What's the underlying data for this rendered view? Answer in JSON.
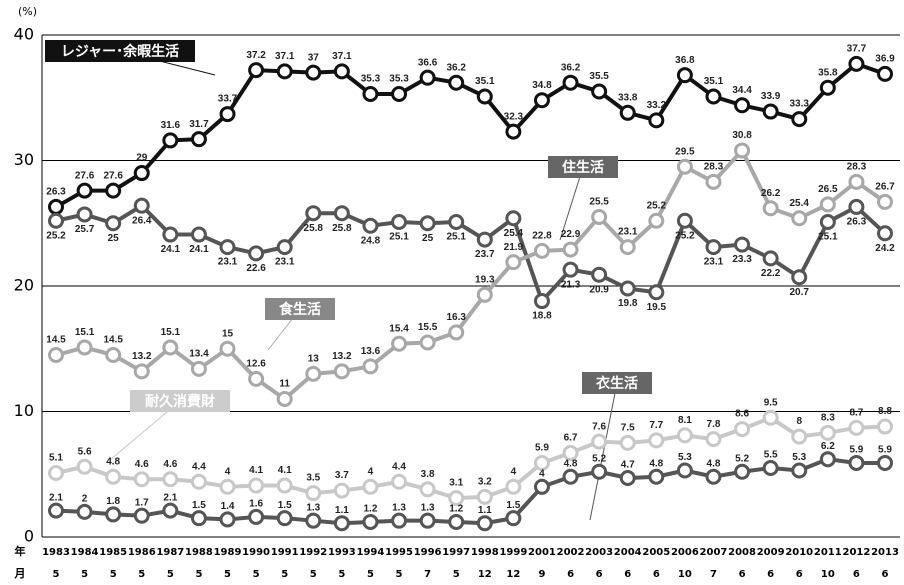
{
  "chart_data": {
    "type": "line",
    "y_unit": "(%)",
    "x_row_labels": [
      "年",
      "月"
    ],
    "categories": [
      "1983",
      "1984",
      "1985",
      "1986",
      "1987",
      "1988",
      "1989",
      "1990",
      "1991",
      "1992",
      "1993",
      "1994",
      "1995",
      "1996",
      "1997",
      "1998",
      "1999",
      "2001",
      "2002",
      "2003",
      "2004",
      "2005",
      "2006",
      "2007",
      "2008",
      "2009",
      "2010",
      "2011",
      "2012",
      "2013"
    ],
    "months": [
      "5",
      "5",
      "5",
      "5",
      "5",
      "5",
      "5",
      "5",
      "5",
      "5",
      "5",
      "5",
      "5",
      "7",
      "5",
      "12",
      "12",
      "9",
      "6",
      "6",
      "6",
      "6",
      "10",
      "7",
      "6",
      "6",
      "6",
      "10",
      "6",
      "6"
    ],
    "ylim": [
      0,
      40
    ],
    "yticks": [
      0,
      10,
      20,
      30,
      40
    ],
    "grid": true,
    "series": [
      {
        "name": "レジャー･余暇生活",
        "color": "#111111",
        "values": [
          26.3,
          27.6,
          27.6,
          29.0,
          31.6,
          31.7,
          33.7,
          37.2,
          37.1,
          37.0,
          37.1,
          35.3,
          35.3,
          36.6,
          36.2,
          35.1,
          32.3,
          34.8,
          36.2,
          35.5,
          33.8,
          33.2,
          36.8,
          35.1,
          34.4,
          33.9,
          33.3,
          35.8,
          37.7,
          36.9
        ]
      },
      {
        "name": "住生活",
        "color": "#555555",
        "values": [
          25.2,
          25.7,
          25.0,
          26.4,
          24.1,
          24.1,
          23.1,
          22.6,
          23.1,
          25.8,
          25.8,
          24.8,
          25.1,
          25.0,
          25.1,
          23.7,
          25.4,
          18.8,
          21.3,
          20.9,
          19.8,
          19.5,
          25.2,
          23.1,
          23.3,
          22.2,
          20.7,
          25.1,
          26.3,
          24.2
        ]
      },
      {
        "name": "食生活",
        "color": "#a8a8a8",
        "values": [
          14.5,
          15.1,
          14.5,
          13.2,
          15.1,
          13.4,
          15.0,
          12.6,
          11.0,
          13.0,
          13.2,
          13.6,
          15.4,
          15.5,
          16.3,
          19.3,
          21.9,
          22.8,
          22.9,
          25.5,
          23.1,
          25.2,
          29.5,
          28.3,
          30.8,
          26.2,
          25.4,
          26.5,
          28.3,
          26.7
        ]
      },
      {
        "name": "耐久消費財",
        "color": "#c8c8c8",
        "values": [
          5.1,
          5.6,
          4.8,
          4.6,
          4.6,
          4.4,
          4.0,
          4.1,
          4.1,
          3.5,
          3.7,
          4.0,
          4.4,
          3.8,
          3.1,
          3.2,
          4.0,
          5.9,
          6.7,
          7.6,
          7.5,
          7.7,
          8.1,
          7.8,
          8.6,
          9.5,
          8.0,
          8.3,
          8.7,
          8.8
        ]
      },
      {
        "name": "衣生活",
        "color": "#555555",
        "values": [
          2.1,
          2.0,
          1.8,
          1.7,
          2.1,
          1.5,
          1.4,
          1.6,
          1.5,
          1.3,
          1.1,
          1.2,
          1.3,
          1.3,
          1.2,
          1.1,
          1.5,
          4.0,
          4.8,
          5.2,
          4.7,
          4.8,
          5.3,
          4.8,
          5.2,
          5.5,
          5.3,
          6.2,
          5.9,
          5.9
        ]
      }
    ]
  }
}
